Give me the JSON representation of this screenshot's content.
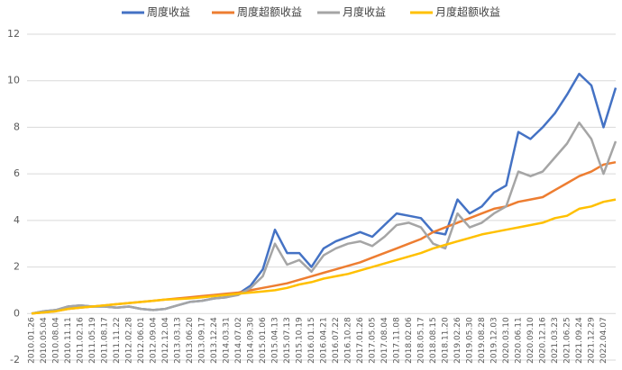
{
  "chart_data": {
    "type": "line",
    "categories": [
      "2010.01.26",
      "2010.05.04",
      "2010.08.04",
      "2010.11.11",
      "2011.02.16",
      "2011.05.19",
      "2011.08.17",
      "2011.11.22",
      "2012.02.28",
      "2012.06.01",
      "2012.09.04",
      "2012.12.04",
      "2013.03.13",
      "2013.06.20",
      "2013.09.17",
      "2013.12.24",
      "2014.03.31",
      "2014.07.02",
      "2014.09.30",
      "2015.01.06",
      "2015.04.13",
      "2015.07.13",
      "2015.10.19",
      "2016.01.15",
      "2016.04.21",
      "2016.07.22",
      "2016.10.28",
      "2017.01.26",
      "2017.05.05",
      "2017.08.04",
      "2017.11.08",
      "2018.02.06",
      "2018.05.17",
      "2018.08.15",
      "2018.11.20",
      "2019.02.26",
      "2019.05.30",
      "2019.08.28",
      "2019.12.03",
      "2020.03.10",
      "2020.06.11",
      "2020.09.10",
      "2020.12.16",
      "2021.03.23",
      "2021.06.25",
      "2021.09.24",
      "2021.12.29",
      "2022.04.07",
      null
    ],
    "series": [
      {
        "name": "周度收益",
        "color": "#4472c4",
        "values": [
          0,
          0.1,
          0.15,
          0.3,
          0.35,
          0.3,
          0.3,
          0.25,
          0.3,
          0.2,
          0.15,
          0.2,
          0.35,
          0.5,
          0.55,
          0.65,
          0.7,
          0.85,
          1.2,
          1.9,
          3.6,
          2.6,
          2.6,
          2.0,
          2.8,
          3.1,
          3.3,
          3.5,
          3.3,
          3.8,
          4.3,
          4.2,
          4.1,
          3.5,
          3.4,
          4.9,
          4.3,
          4.6,
          5.2,
          5.5,
          7.8,
          7.5,
          8.0,
          8.6,
          9.4,
          10.3,
          9.8,
          8.0,
          9.7
        ]
      },
      {
        "name": "周度超额收益",
        "color": "#ed7d31",
        "values": [
          0,
          0.05,
          0.1,
          0.2,
          0.25,
          0.3,
          0.35,
          0.4,
          0.45,
          0.5,
          0.55,
          0.6,
          0.65,
          0.7,
          0.75,
          0.8,
          0.85,
          0.9,
          1.0,
          1.1,
          1.2,
          1.3,
          1.45,
          1.6,
          1.75,
          1.9,
          2.05,
          2.2,
          2.4,
          2.6,
          2.8,
          3.0,
          3.2,
          3.5,
          3.7,
          3.9,
          4.1,
          4.3,
          4.5,
          4.6,
          4.8,
          4.9,
          5.0,
          5.3,
          5.6,
          5.9,
          6.1,
          6.4,
          6.5
        ]
      },
      {
        "name": "月度收益",
        "color": "#a5a5a5",
        "values": [
          0,
          0.1,
          0.15,
          0.3,
          0.35,
          0.3,
          0.3,
          0.25,
          0.3,
          0.2,
          0.15,
          0.2,
          0.35,
          0.5,
          0.55,
          0.65,
          0.7,
          0.8,
          1.1,
          1.6,
          3.0,
          2.1,
          2.3,
          1.8,
          2.5,
          2.8,
          3.0,
          3.1,
          2.9,
          3.3,
          3.8,
          3.9,
          3.7,
          3.0,
          2.8,
          4.3,
          3.7,
          3.9,
          4.3,
          4.6,
          6.1,
          5.9,
          6.1,
          6.7,
          7.3,
          8.2,
          7.5,
          6.0,
          7.4
        ]
      },
      {
        "name": "月度超额收益",
        "color": "#ffc000",
        "values": [
          0,
          0.05,
          0.1,
          0.2,
          0.25,
          0.3,
          0.35,
          0.4,
          0.45,
          0.5,
          0.55,
          0.6,
          0.62,
          0.65,
          0.7,
          0.75,
          0.8,
          0.85,
          0.9,
          0.95,
          1.0,
          1.1,
          1.25,
          1.35,
          1.5,
          1.6,
          1.7,
          1.85,
          2.0,
          2.15,
          2.3,
          2.45,
          2.6,
          2.8,
          2.95,
          3.1,
          3.25,
          3.4,
          3.5,
          3.6,
          3.7,
          3.8,
          3.9,
          4.1,
          4.2,
          4.5,
          4.6,
          4.8,
          4.9
        ]
      }
    ],
    "ylim": [
      -2,
      12
    ],
    "yticks": [
      -2,
      0,
      2,
      4,
      6,
      8,
      10,
      12
    ],
    "grid": true,
    "legend": "top"
  }
}
